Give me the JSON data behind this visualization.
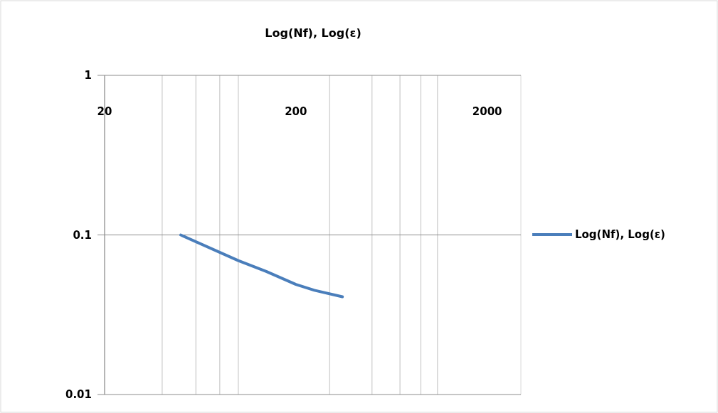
{
  "chart_data": {
    "type": "line",
    "title": "Log(Nf), Log(ε)",
    "log": "xy",
    "xlim": [
      20,
      3000
    ],
    "ylim": [
      0.01,
      1
    ],
    "xticks": [
      20,
      200,
      2000
    ],
    "yticks": [
      0.01,
      0.1,
      1
    ],
    "grid": true,
    "legend": "right",
    "series": [
      {
        "name": "Log(Nf), Log(ε)",
        "color": "#4a7ebb",
        "x": [
          50,
          100,
          140,
          200,
          250,
          350
        ],
        "values": [
          0.1,
          0.069,
          0.059,
          0.049,
          0.045,
          0.041
        ]
      }
    ]
  }
}
